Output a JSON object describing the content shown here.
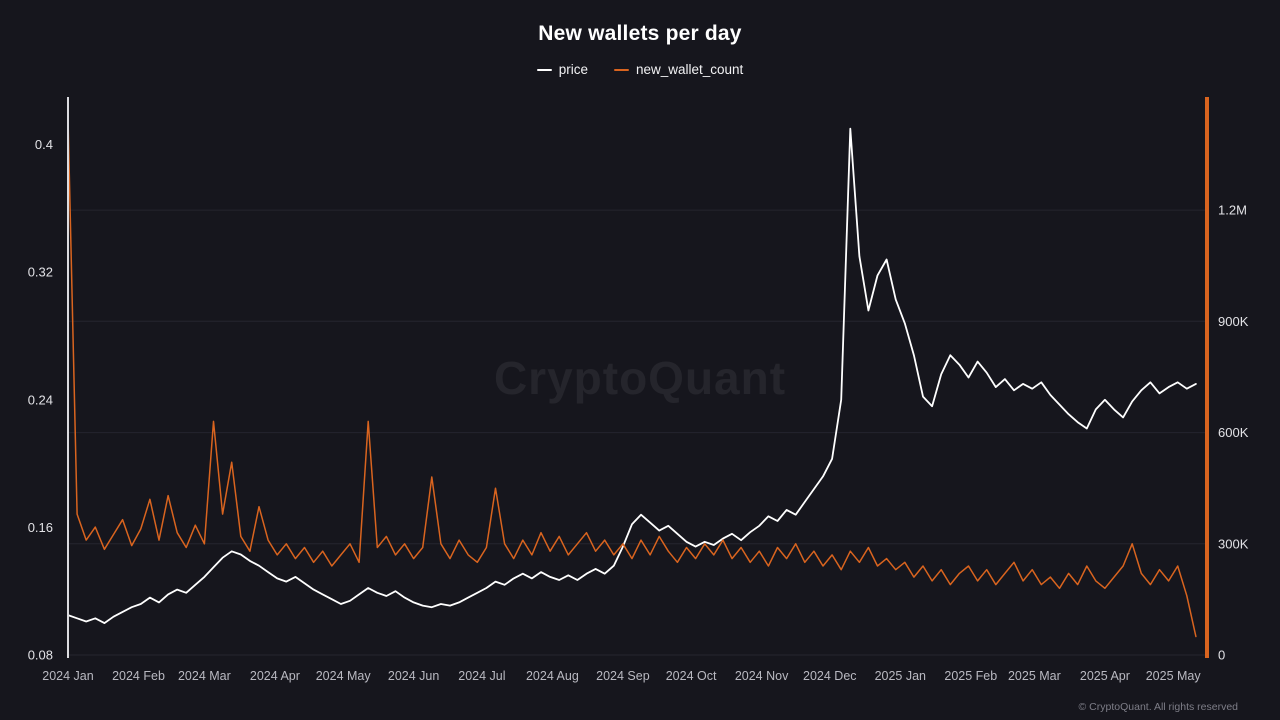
{
  "title": "New wallets per day",
  "watermark": "CryptoQuant",
  "footer": "© CryptoQuant. All rights reserved",
  "legend": [
    {
      "label": "price",
      "color": "#ffffff"
    },
    {
      "label": "new_wallet_count",
      "color": "#d9641f"
    }
  ],
  "colors": {
    "background": "#16161d",
    "grid": "#25252e",
    "left_spine": "#dcdce0",
    "right_spine": "#d9641f",
    "y_tick_text": "#e2e2e6",
    "x_tick_text": "#b9b9c1",
    "price_line": "#ffffff",
    "wallet_line": "#d9641f"
  },
  "chart_data": {
    "type": "line",
    "title": "New wallets per day",
    "x_unit": "days_since_2024-01-01",
    "x_domain": [
      0,
      500
    ],
    "grid": "horizontal-faint",
    "legend_position": "top-center",
    "x_ticks": [
      {
        "day": 0,
        "label": "2024 Jan"
      },
      {
        "day": 31,
        "label": "2024 Feb"
      },
      {
        "day": 60,
        "label": "2024 Mar"
      },
      {
        "day": 91,
        "label": "2024 Apr"
      },
      {
        "day": 121,
        "label": "2024 May"
      },
      {
        "day": 152,
        "label": "2024 Jun"
      },
      {
        "day": 182,
        "label": "2024 Jul"
      },
      {
        "day": 213,
        "label": "2024 Aug"
      },
      {
        "day": 244,
        "label": "2024 Sep"
      },
      {
        "day": 274,
        "label": "2024 Oct"
      },
      {
        "day": 305,
        "label": "2024 Nov"
      },
      {
        "day": 335,
        "label": "2024 Dec"
      },
      {
        "day": 366,
        "label": "2025 Jan"
      },
      {
        "day": 397,
        "label": "2025 Feb"
      },
      {
        "day": 425,
        "label": "2025 Mar"
      },
      {
        "day": 456,
        "label": "2025 Apr"
      },
      {
        "day": 486,
        "label": "2025 May"
      }
    ],
    "axes": {
      "left": {
        "min": 0.08,
        "max": 0.428,
        "ticks": [
          {
            "v": 0.4,
            "label": "0.4"
          },
          {
            "v": 0.32,
            "label": "0.32"
          },
          {
            "v": 0.24,
            "label": "0.24"
          },
          {
            "v": 0.16,
            "label": "0.16"
          },
          {
            "v": 0.08,
            "label": "0.08"
          }
        ]
      },
      "right": {
        "min": 0,
        "max": 1497,
        "unit": "thousands",
        "ticks": [
          {
            "v": 1200,
            "label": "1.2M"
          },
          {
            "v": 900,
            "label": "900K"
          },
          {
            "v": 600,
            "label": "600K"
          },
          {
            "v": 300,
            "label": "300K"
          },
          {
            "v": 0,
            "label": "0"
          }
        ]
      }
    },
    "series": [
      {
        "name": "price",
        "axis": "left",
        "color": "#ffffff",
        "x_start": 0,
        "x_step": 4,
        "values": [
          0.105,
          0.103,
          0.101,
          0.103,
          0.1,
          0.104,
          0.107,
          0.11,
          0.112,
          0.116,
          0.113,
          0.118,
          0.121,
          0.119,
          0.124,
          0.129,
          0.135,
          0.141,
          0.145,
          0.143,
          0.139,
          0.136,
          0.132,
          0.128,
          0.126,
          0.129,
          0.125,
          0.121,
          0.118,
          0.115,
          0.112,
          0.114,
          0.118,
          0.122,
          0.119,
          0.117,
          0.12,
          0.116,
          0.113,
          0.111,
          0.11,
          0.112,
          0.111,
          0.113,
          0.116,
          0.119,
          0.122,
          0.126,
          0.124,
          0.128,
          0.131,
          0.128,
          0.132,
          0.129,
          0.127,
          0.13,
          0.127,
          0.131,
          0.134,
          0.131,
          0.136,
          0.148,
          0.162,
          0.168,
          0.163,
          0.158,
          0.161,
          0.156,
          0.151,
          0.148,
          0.151,
          0.149,
          0.153,
          0.156,
          0.152,
          0.157,
          0.161,
          0.167,
          0.164,
          0.171,
          0.168,
          0.176,
          0.184,
          0.192,
          0.203,
          0.24,
          0.41,
          0.33,
          0.296,
          0.318,
          0.328,
          0.303,
          0.288,
          0.268,
          0.242,
          0.236,
          0.256,
          0.268,
          0.262,
          0.254,
          0.264,
          0.257,
          0.248,
          0.253,
          0.246,
          0.25,
          0.247,
          0.251,
          0.243,
          0.237,
          0.231,
          0.226,
          0.222,
          0.234,
          0.24,
          0.234,
          0.229,
          0.239,
          0.246,
          0.251,
          0.244,
          0.248,
          0.251,
          0.247,
          0.25
        ]
      },
      {
        "name": "new_wallet_count",
        "axis": "right",
        "color": "#d9641f",
        "value_unit": "thousands",
        "x_start": 0,
        "x_step": 4,
        "values": [
          1450,
          380,
          310,
          345,
          285,
          325,
          365,
          295,
          340,
          420,
          310,
          430,
          330,
          290,
          350,
          300,
          630,
          380,
          520,
          320,
          280,
          400,
          310,
          270,
          300,
          260,
          290,
          250,
          280,
          240,
          270,
          300,
          250,
          630,
          290,
          320,
          270,
          300,
          260,
          290,
          480,
          300,
          260,
          310,
          270,
          250,
          290,
          450,
          300,
          260,
          310,
          270,
          330,
          280,
          320,
          270,
          300,
          330,
          280,
          310,
          270,
          300,
          260,
          310,
          270,
          320,
          280,
          250,
          290,
          260,
          300,
          270,
          310,
          260,
          290,
          250,
          280,
          240,
          290,
          260,
          300,
          250,
          280,
          240,
          270,
          230,
          280,
          250,
          290,
          240,
          260,
          230,
          250,
          210,
          240,
          200,
          230,
          190,
          220,
          240,
          200,
          230,
          190,
          220,
          250,
          200,
          230,
          190,
          210,
          180,
          220,
          190,
          240,
          200,
          180,
          210,
          240,
          300,
          220,
          190,
          230,
          200,
          240,
          160,
          50
        ]
      }
    ]
  }
}
